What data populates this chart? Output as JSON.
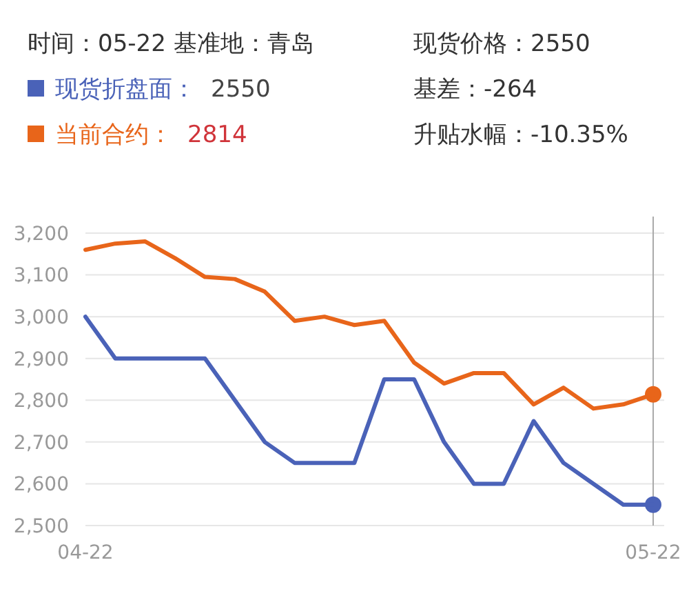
{
  "chart_data": {
    "type": "line",
    "categories": [
      "04-22",
      null,
      null,
      null,
      null,
      null,
      null,
      null,
      null,
      null,
      null,
      null,
      null,
      null,
      null,
      null,
      null,
      null,
      null,
      "05-22"
    ],
    "series": [
      {
        "name": "现货折盘面：",
        "color": "#4a62b8",
        "values": [
          3000,
          2900,
          2900,
          2900,
          2900,
          2800,
          2700,
          2650,
          2650,
          2650,
          2850,
          2850,
          2700,
          2600,
          2600,
          2750,
          2650,
          2600,
          2550,
          2550
        ]
      },
      {
        "name": "当前合约：",
        "color": "#e8651a",
        "values": [
          3160,
          3175,
          3180,
          3140,
          3095,
          3090,
          3060,
          2990,
          3000,
          2980,
          2990,
          2890,
          2840,
          2865,
          2865,
          2790,
          2830,
          2780,
          2790,
          2814
        ]
      }
    ],
    "ylim": [
      2500,
      3200
    ],
    "yticks": [
      {
        "value": 2500,
        "label": "2,500"
      },
      {
        "value": 2600,
        "label": "2,600"
      },
      {
        "value": 2700,
        "label": "2,700"
      },
      {
        "value": 2800,
        "label": "2,800"
      },
      {
        "value": 2900,
        "label": "2,900"
      },
      {
        "value": 3000,
        "label": "3,000"
      },
      {
        "value": 3100,
        "label": "3,100"
      },
      {
        "value": 3200,
        "label": "3,200"
      }
    ],
    "grid": "y",
    "legend": "top left",
    "ref_lines": [
      {
        "axis": "x",
        "value": "05-22",
        "color": "#aaaaaa"
      }
    ],
    "annotations": [
      "时间：05-22  基准地：青岛",
      "现货价格：2550",
      "基差：-264",
      "升贴水幅：-10.35%",
      "2550",
      "2814"
    ]
  }
}
